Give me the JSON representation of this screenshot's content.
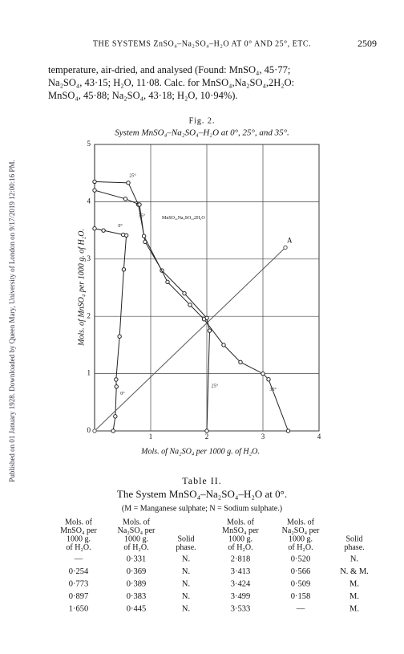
{
  "side_note": "Published on 01 January 1928. Downloaded by Queen Mary, University of London on 9/17/2019 12:00:16 PM.",
  "header": {
    "running_title": "THE SYSTEMS ZnSO₄–Na₂SO₄–H₂O AT 0° AND 25°, ETC.",
    "page_number": "2509"
  },
  "paragraph": [
    "temperature, air-dried, and analysed (Found: MnSO₄, 45·77;",
    "Na₂SO₄, 43·15; H₂O, 11·08. Calc. for MnSO₄,Na₂SO₄,2H₂O:",
    "MnSO₄, 45·88; Na₂SO₄, 43·18; H₂O, 10·94%)."
  ],
  "figure": {
    "label": "Fig. 2.",
    "caption": "System MnSO₄–Na₂SO₄–H₂O at 0°, 25°, and 35°."
  },
  "chart_data": {
    "type": "line",
    "x_label": "Mols. of Na₂SO₄ per 1000 g. of H₂O.",
    "y_label": "Mols. of MnSO₄ per 1000 g. of H₂O.",
    "xlim": [
      0,
      4
    ],
    "ylim": [
      0,
      5
    ],
    "xticks": [
      1,
      2,
      3,
      4
    ],
    "yticks": [
      0,
      1,
      2,
      3,
      4,
      5
    ],
    "grid": true,
    "series": [
      {
        "name": "0°",
        "color": "#222",
        "x": [
          0.331,
          0.369,
          0.389,
          0.383,
          0.445,
          0.52,
          0.566,
          0.509,
          0.158,
          0
        ],
        "values": [
          0,
          0.254,
          0.773,
          0.897,
          1.65,
          2.818,
          3.413,
          3.424,
          3.499,
          3.533
        ]
      },
      {
        "name": "25°",
        "color": "#222",
        "x": [
          0,
          0.6,
          0.78,
          0.9,
          1.2,
          1.6,
          2.0,
          2.05,
          2.0
        ],
        "values": [
          4.35,
          4.33,
          3.95,
          3.3,
          2.8,
          2.4,
          1.97,
          1.75,
          0
        ]
      },
      {
        "name": "35°",
        "color": "#222",
        "x": [
          0,
          0.55,
          0.8,
          0.88,
          1.3,
          1.7,
          1.95,
          2.3,
          2.6,
          3.0,
          3.1,
          3.45
        ],
        "values": [
          4.2,
          4.05,
          3.95,
          3.4,
          2.6,
          2.2,
          1.95,
          1.5,
          1.2,
          1.0,
          0.9,
          0
        ]
      },
      {
        "name": "A",
        "color": "#555",
        "x": [
          0,
          3.4
        ],
        "values": [
          0,
          3.2
        ]
      }
    ],
    "annotations": [
      "25°",
      "35°",
      "0°",
      "MnSO₄,Na₂SO₄,2H₂O",
      "25°",
      "35°",
      "0°"
    ]
  },
  "table": {
    "label": "Table II.",
    "title": "The System MnSO₄–Na₂SO₄–H₂O at 0°.",
    "note": "(M = Manganese sulphate; N = Sodium sulphate.)",
    "headers": [
      [
        "Mols. of",
        "MnSO₄ per",
        "1000 g.",
        "of H₂O."
      ],
      [
        "Mols. of",
        "Na₂SO₄ per",
        "1000 g.",
        "of H₂O."
      ],
      [
        "Solid",
        "phase."
      ],
      [
        "Mols. of",
        "MnSO₄ per",
        "1000 g.",
        "of H₂O."
      ],
      [
        "Mols. of",
        "Na₂SO₄ per",
        "1000 g.",
        "of H₂O."
      ],
      [
        "Solid",
        "phase."
      ]
    ],
    "rows": [
      [
        "—",
        "0·331",
        "N.",
        "2·818",
        "0·520",
        "N."
      ],
      [
        "0·254",
        "0·369",
        "N.",
        "3·413",
        "0·566",
        "N. & M."
      ],
      [
        "0·773",
        "0·389",
        "N.",
        "3·424",
        "0·509",
        "M."
      ],
      [
        "0·897",
        "0·383",
        "N.",
        "3·499",
        "0·158",
        "M."
      ],
      [
        "1·650",
        "0·445",
        "N.",
        "3·533",
        "—",
        "M."
      ]
    ]
  }
}
